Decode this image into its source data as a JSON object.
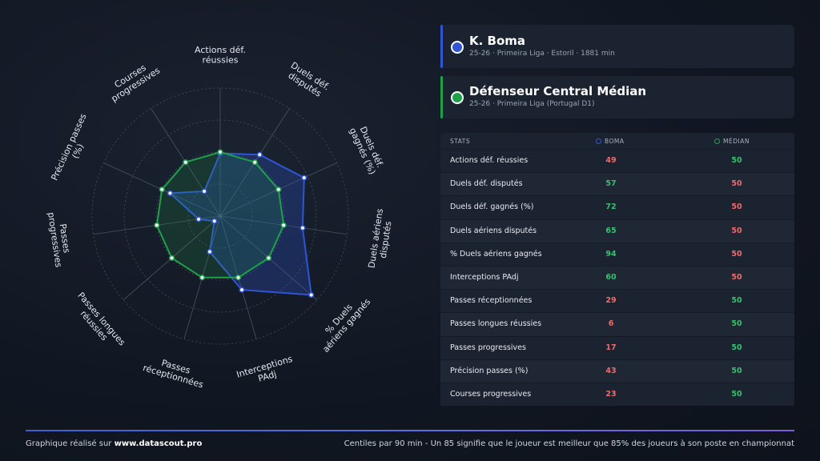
{
  "colors": {
    "player": "#2f55d4",
    "median": "#1fa14a",
    "good": "#37c16e",
    "bad": "#f06b6b"
  },
  "player_card": {
    "name": "K. Boma",
    "sub": "25-26 · Primeira Liga · Estoril · 1881 min"
  },
  "median_card": {
    "name": "Défenseur Central Médian",
    "sub": "25-26 · Primeira Liga (Portugal D1)"
  },
  "table": {
    "header_stats": "STATS",
    "header_player": "BOMA",
    "header_median": "MÉDIAN"
  },
  "chart_data": {
    "type": "radar",
    "range": [
      0,
      100
    ],
    "axes": [
      [
        "Actions déf.",
        "réussies"
      ],
      [
        "Duels déf.",
        "disputés"
      ],
      [
        "Duels déf.",
        "gagnés (%)"
      ],
      [
        "Duels aériens",
        "disputés"
      ],
      [
        "% Duels",
        "aériens gagnés"
      ],
      [
        "Interceptions",
        "PAdj"
      ],
      [
        "Passes",
        "réceptionnées"
      ],
      [
        "Passes longues",
        "réussies"
      ],
      [
        "Passes",
        "progressives"
      ],
      [
        "Précision passes",
        "(%)"
      ],
      [
        "Courses",
        "progressives"
      ]
    ],
    "stat_names": [
      "Actions déf. réussies",
      "Duels déf. disputés",
      "Duels déf. gagnés (%)",
      "Duels aériens disputés",
      "% Duels aériens gagnés",
      "Interceptions PAdj",
      "Passes réceptionnées",
      "Passes longues réussies",
      "Passes progressives",
      "Précision passes (%)",
      "Courses progressives"
    ],
    "series": [
      {
        "name": "BOMA",
        "values": [
          49,
          57,
          72,
          65,
          94,
          60,
          29,
          6,
          17,
          43,
          23
        ]
      },
      {
        "name": "MÉDIAN",
        "values": [
          50,
          50,
          50,
          50,
          50,
          50,
          50,
          50,
          50,
          50,
          50
        ]
      }
    ]
  },
  "footer": {
    "left_prefix": "Graphique réalisé sur",
    "left_site": "www.datascout.pro",
    "right": "Centiles par 90 min - Un 85 signifie que le joueur est meilleur que 85% des joueurs à son poste en championnat"
  }
}
